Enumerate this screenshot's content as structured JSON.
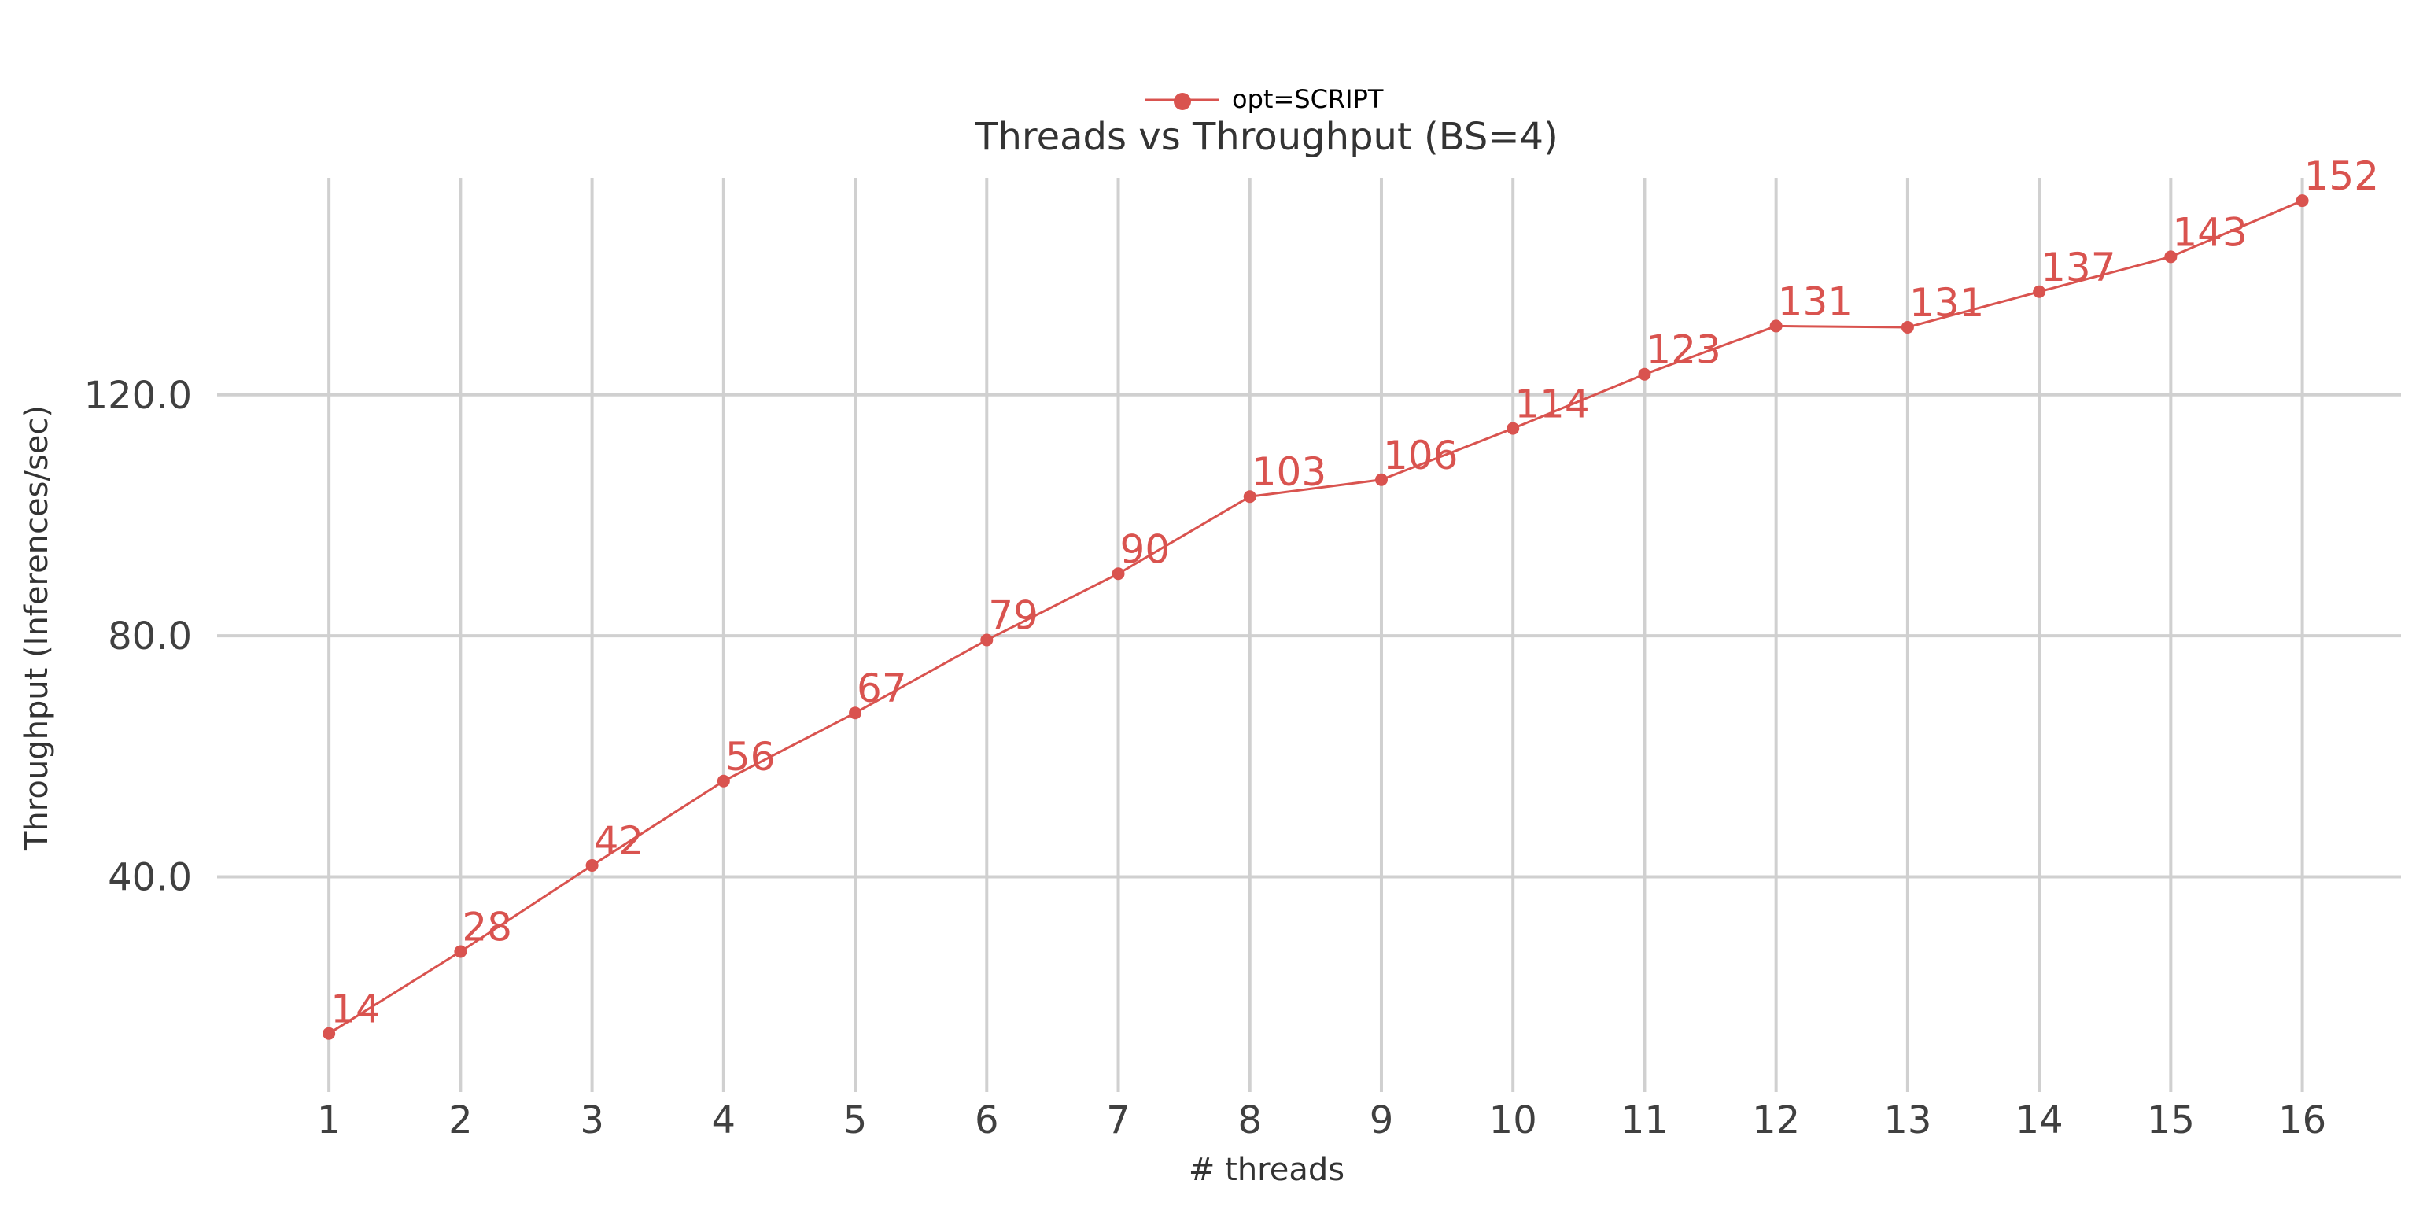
{
  "chart_data": {
    "type": "line",
    "title": "Threads vs Throughput (BS=4)",
    "xlabel": "# threads",
    "ylabel": "Throughput (Inferences/sec)",
    "x": [
      1,
      2,
      3,
      4,
      5,
      6,
      7,
      8,
      9,
      10,
      11,
      12,
      13,
      14,
      15,
      16
    ],
    "x_tick_labels": [
      "1",
      "2",
      "3",
      "4",
      "5",
      "6",
      "7",
      "8",
      "9",
      "10",
      "11",
      "12",
      "13",
      "14",
      "15",
      "16"
    ],
    "y_ticks": [
      40.0,
      80.0,
      120.0
    ],
    "y_tick_labels": [
      "40.0",
      "80.0",
      "120.0"
    ],
    "ylim": [
      4.3,
      156.0
    ],
    "xlim": [
      0.15,
      16.75
    ],
    "grid": true,
    "legend_position": "top-center",
    "series": [
      {
        "name": "opt=SCRIPT",
        "color": "#d9534f",
        "marker": "circle",
        "values": [
          14.0,
          27.6,
          41.9,
          55.9,
          67.2,
          79.3,
          90.3,
          103.1,
          105.9,
          114.4,
          123.4,
          131.4,
          131.2,
          137.1,
          142.9,
          152.2
        ],
        "labels": [
          "14",
          "28",
          "42",
          "56",
          "67",
          "79",
          "90",
          "103",
          "106",
          "114",
          "123",
          "131",
          "131",
          "137",
          "143",
          "152"
        ]
      }
    ]
  }
}
